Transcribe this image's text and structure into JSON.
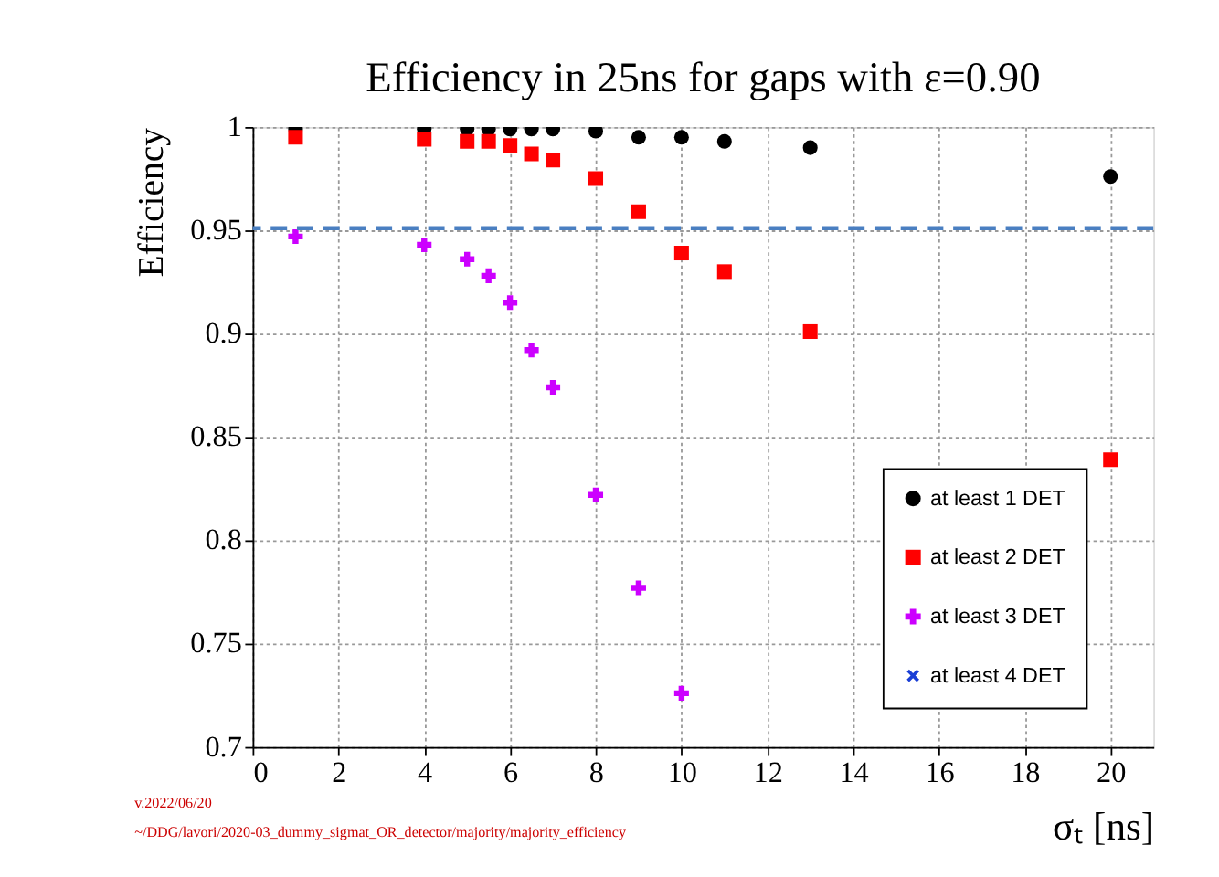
{
  "chart_data": {
    "type": "scatter",
    "title": "Efficiency in 25ns for gaps with ε=0.90",
    "xlabel": "σₜ [ns]",
    "ylabel": "Efficiency",
    "x": [
      1,
      4,
      5,
      5.5,
      6,
      6.5,
      7,
      8,
      9,
      10,
      11,
      13,
      20
    ],
    "series": [
      {
        "name": "at least 1 DET",
        "color": "#000000",
        "marker": "circle",
        "values": [
          0.999,
          0.999,
          0.999,
          0.999,
          0.999,
          0.999,
          0.999,
          0.998,
          0.995,
          0.995,
          0.993,
          0.99,
          0.976
        ]
      },
      {
        "name": "at least 2 DET",
        "color": "#ff0000",
        "marker": "square",
        "values": [
          0.995,
          0.994,
          0.993,
          0.993,
          0.991,
          0.987,
          0.984,
          0.975,
          0.959,
          0.939,
          0.93,
          0.901,
          0.839
        ]
      },
      {
        "name": "at least 3 DET",
        "color": "#cc00ff",
        "marker": "cross",
        "values": [
          0.947,
          0.943,
          0.936,
          0.928,
          0.915,
          0.892,
          0.874,
          0.822,
          0.777,
          0.726,
          null,
          null,
          null
        ]
      },
      {
        "name": "at least 4 DET",
        "color": "#1a3fd6",
        "marker": "x",
        "values": [
          null,
          null,
          null,
          null,
          null,
          null,
          null,
          null,
          null,
          null,
          null,
          null,
          null
        ]
      }
    ],
    "xlim": [
      0,
      21
    ],
    "xticks": [
      0,
      2,
      4,
      6,
      8,
      10,
      12,
      14,
      16,
      18,
      20
    ],
    "ylim": [
      0.7,
      1
    ],
    "yticks": [
      0.7,
      0.75,
      0.8,
      0.85,
      0.9,
      0.95,
      1
    ],
    "ref_lines": [
      {
        "axis": "y",
        "value": 0.951,
        "color": "#4a7fc1",
        "line_style": "dashed"
      }
    ],
    "grid": true,
    "legend": "bottom right",
    "annotations": [
      "v.2022/06/20",
      "~/DDG/lavori/2020-03_dummy_sigmat_OR_detector/majority/majority_efficiency"
    ]
  }
}
